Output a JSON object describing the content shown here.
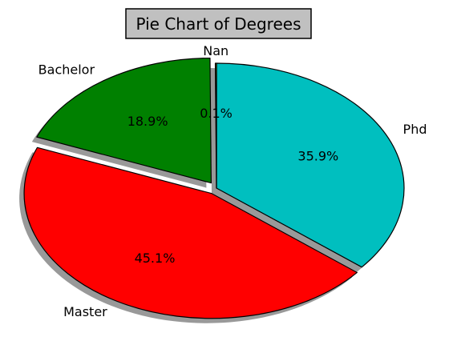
{
  "chart_data": {
    "type": "pie",
    "title": "Pie Chart of Degrees",
    "slices": [
      {
        "label": "Phd",
        "value": 35.9,
        "pct_label": "35.9%",
        "color": "#00bfbf",
        "explode": false
      },
      {
        "label": "Master",
        "value": 45.1,
        "pct_label": "45.1%",
        "color": "#ff0000",
        "explode": true
      },
      {
        "label": "Bachelor",
        "value": 18.9,
        "pct_label": "18.9%",
        "color": "#008000",
        "explode": true
      },
      {
        "label": "Nan",
        "value": 0.1,
        "pct_label": "0.1%",
        "color": "#bfbf00",
        "explode": false
      }
    ],
    "start_angle_deg": 90,
    "direction": "clockwise",
    "shadow": true,
    "title_box_color": "#c0c0c0"
  }
}
